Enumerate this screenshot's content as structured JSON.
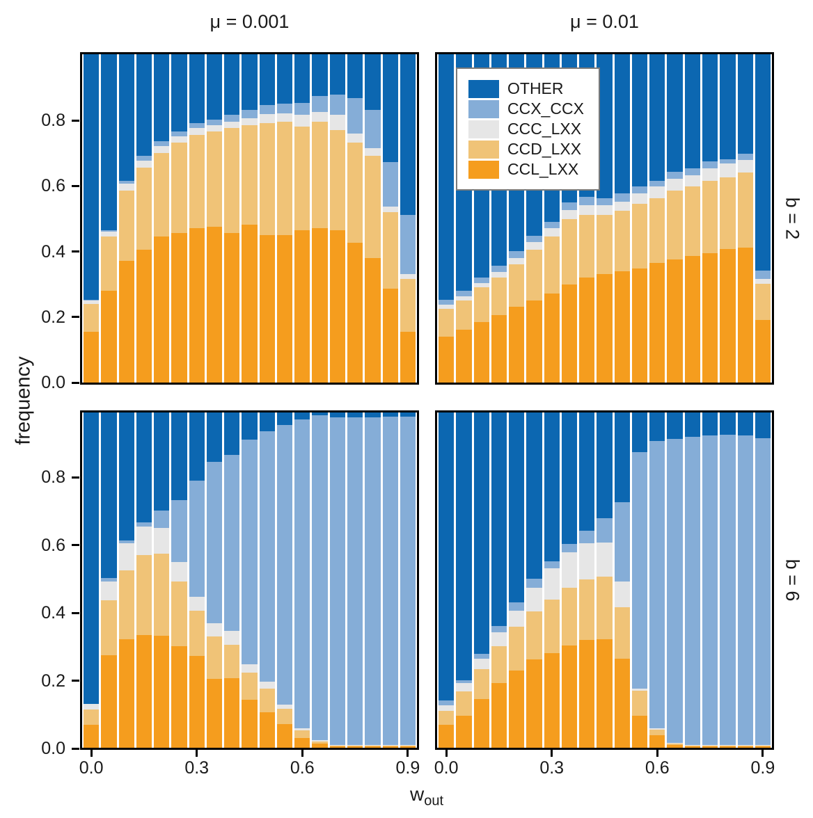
{
  "chart_data": {
    "type": "bar",
    "stacked": true,
    "title": "",
    "ylabel": "frequency",
    "xlabel_base": "w",
    "xlabel_sub": "out",
    "facet_cols": [
      "μ = 0.001",
      "μ = 0.01"
    ],
    "facet_rows": [
      "b = 2",
      "b = 6"
    ],
    "x": [
      0.0,
      0.05,
      0.1,
      0.15,
      0.2,
      0.25,
      0.3,
      0.35,
      0.4,
      0.45,
      0.5,
      0.55,
      0.6,
      0.65,
      0.7,
      0.75,
      0.8,
      0.85,
      0.9
    ],
    "x_ticks": [
      "0.0",
      "0.3",
      "0.6",
      "0.9"
    ],
    "x_tick_positions": [
      0.0,
      0.3,
      0.6,
      0.9
    ],
    "y_ticks": [
      "0.0",
      "0.2",
      "0.4",
      "0.6",
      "0.8"
    ],
    "ylim": [
      0,
      1
    ],
    "grid": false,
    "legend_position": "top-right-panel-inset",
    "legend_order": [
      "OTHER",
      "CCX_CCX",
      "CCC_LXX",
      "CCD_LXX",
      "CCL_LXX"
    ],
    "stack_order": [
      "CCL_LXX",
      "CCD_LXX",
      "CCC_LXX",
      "CCX_CCX",
      "OTHER"
    ],
    "colors": {
      "OTHER": "#0c67b1",
      "CCX_CCX": "#85add7",
      "CCC_LXX": "#e6e6e6",
      "CCD_LXX": "#f0c377",
      "CCL_LXX": "#f59d1e"
    },
    "panels": [
      {
        "facet_col": "μ = 0.001",
        "facet_row": "b = 2",
        "series": {
          "CCL_LXX": [
            0.155,
            0.28,
            0.37,
            0.405,
            0.445,
            0.455,
            0.47,
            0.475,
            0.455,
            0.48,
            0.45,
            0.45,
            0.465,
            0.47,
            0.465,
            0.425,
            0.38,
            0.285,
            0.155
          ],
          "CCD_LXX": [
            0.085,
            0.165,
            0.215,
            0.25,
            0.255,
            0.275,
            0.285,
            0.29,
            0.32,
            0.305,
            0.34,
            0.345,
            0.315,
            0.325,
            0.305,
            0.305,
            0.31,
            0.235,
            0.16
          ],
          "CCC_LXX": [
            0.01,
            0.015,
            0.02,
            0.02,
            0.02,
            0.02,
            0.02,
            0.02,
            0.02,
            0.02,
            0.028,
            0.025,
            0.035,
            0.03,
            0.045,
            0.028,
            0.024,
            0.017,
            0.015
          ],
          "CCX_CCX": [
            0.002,
            0.005,
            0.01,
            0.015,
            0.015,
            0.015,
            0.015,
            0.015,
            0.02,
            0.025,
            0.027,
            0.03,
            0.037,
            0.048,
            0.062,
            0.108,
            0.117,
            0.135,
            0.18
          ],
          "OTHER": [
            0.748,
            0.535,
            0.385,
            0.31,
            0.265,
            0.235,
            0.21,
            0.2,
            0.185,
            0.17,
            0.155,
            0.15,
            0.148,
            0.127,
            0.123,
            0.134,
            0.169,
            0.328,
            0.49
          ]
        }
      },
      {
        "facet_col": "μ = 0.01",
        "facet_row": "b = 2",
        "series": {
          "CCL_LXX": [
            0.14,
            0.16,
            0.185,
            0.205,
            0.23,
            0.25,
            0.272,
            0.298,
            0.32,
            0.33,
            0.34,
            0.348,
            0.365,
            0.376,
            0.386,
            0.394,
            0.406,
            0.41,
            0.191
          ],
          "CCD_LXX": [
            0.085,
            0.09,
            0.105,
            0.115,
            0.13,
            0.155,
            0.172,
            0.199,
            0.19,
            0.18,
            0.183,
            0.197,
            0.197,
            0.209,
            0.212,
            0.22,
            0.219,
            0.229,
            0.109
          ],
          "CCC_LXX": [
            0.012,
            0.012,
            0.013,
            0.018,
            0.02,
            0.024,
            0.027,
            0.028,
            0.03,
            0.03,
            0.028,
            0.031,
            0.035,
            0.036,
            0.034,
            0.039,
            0.042,
            0.04,
            0.015
          ],
          "CCX_CCX": [
            0.015,
            0.017,
            0.018,
            0.019,
            0.021,
            0.019,
            0.019,
            0.023,
            0.025,
            0.022,
            0.025,
            0.021,
            0.017,
            0.021,
            0.021,
            0.021,
            0.014,
            0.019,
            0.027
          ],
          "OTHER": [
            0.748,
            0.721,
            0.679,
            0.643,
            0.599,
            0.552,
            0.51,
            0.452,
            0.435,
            0.438,
            0.424,
            0.403,
            0.386,
            0.358,
            0.347,
            0.326,
            0.319,
            0.302,
            0.658
          ]
        }
      },
      {
        "facet_col": "μ = 0.001",
        "facet_row": "b = 6",
        "series": {
          "CCL_LXX": [
            0.068,
            0.277,
            0.323,
            0.336,
            0.335,
            0.302,
            0.273,
            0.205,
            0.208,
            0.143,
            0.105,
            0.071,
            0.03,
            0.012,
            0.005,
            0.004,
            0.004,
            0.004,
            0.004
          ],
          "CCD_LXX": [
            0.047,
            0.162,
            0.207,
            0.238,
            0.244,
            0.194,
            0.136,
            0.126,
            0.099,
            0.082,
            0.072,
            0.046,
            0.021,
            0.006,
            0.002,
            0.002,
            0.002,
            0.002,
            0.002
          ],
          "CCC_LXX": [
            0.015,
            0.057,
            0.08,
            0.086,
            0.077,
            0.058,
            0.041,
            0.041,
            0.041,
            0.024,
            0.02,
            0.012,
            0.008,
            0.004,
            0.002,
            0.002,
            0.002,
            0.002,
            0.002
          ],
          "CCX_CCX": [
            0.0,
            0.011,
            0.009,
            0.013,
            0.052,
            0.184,
            0.346,
            0.48,
            0.526,
            0.67,
            0.748,
            0.833,
            0.921,
            0.969,
            0.976,
            0.977,
            0.977,
            0.98,
            0.98
          ],
          "OTHER": [
            0.87,
            0.493,
            0.381,
            0.327,
            0.292,
            0.262,
            0.204,
            0.148,
            0.126,
            0.081,
            0.055,
            0.038,
            0.02,
            0.009,
            0.015,
            0.015,
            0.015,
            0.012,
            0.012
          ]
        }
      },
      {
        "facet_col": "μ = 0.01",
        "facet_row": "b = 6",
        "series": {
          "CCL_LXX": [
            0.069,
            0.095,
            0.146,
            0.192,
            0.23,
            0.263,
            0.283,
            0.306,
            0.322,
            0.324,
            0.265,
            0.095,
            0.038,
            0.008,
            0.005,
            0.005,
            0.005,
            0.005,
            0.005
          ],
          "CCD_LXX": [
            0.041,
            0.073,
            0.088,
            0.11,
            0.131,
            0.143,
            0.16,
            0.172,
            0.181,
            0.186,
            0.154,
            0.075,
            0.017,
            0.004,
            0.002,
            0.002,
            0.002,
            0.002,
            0.002
          ],
          "CCC_LXX": [
            0.017,
            0.024,
            0.031,
            0.042,
            0.048,
            0.072,
            0.092,
            0.106,
            0.107,
            0.102,
            0.076,
            0.007,
            0.003,
            0.002,
            0.001,
            0.001,
            0.001,
            0.001,
            0.001
          ],
          "CCX_CCX": [
            0.014,
            0.009,
            0.015,
            0.02,
            0.025,
            0.027,
            0.022,
            0.024,
            0.037,
            0.072,
            0.237,
            0.704,
            0.856,
            0.908,
            0.92,
            0.923,
            0.926,
            0.924,
            0.916
          ],
          "OTHER": [
            0.859,
            0.799,
            0.72,
            0.636,
            0.566,
            0.495,
            0.443,
            0.392,
            0.353,
            0.316,
            0.268,
            0.119,
            0.086,
            0.078,
            0.072,
            0.069,
            0.066,
            0.068,
            0.076
          ]
        }
      }
    ]
  }
}
